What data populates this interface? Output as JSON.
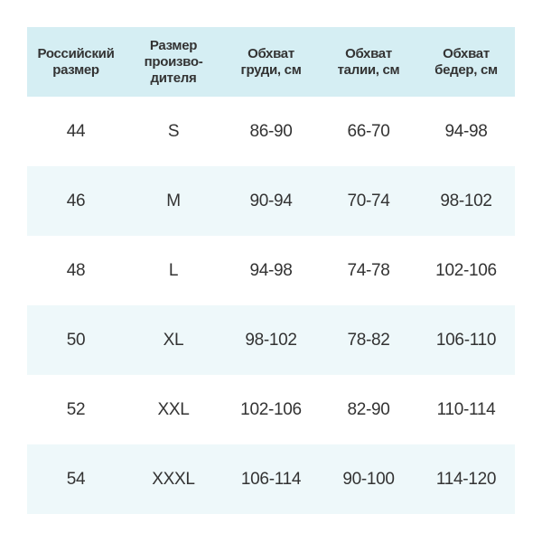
{
  "table": {
    "header": [
      [
        "Российский",
        "размер"
      ],
      [
        "Размер",
        "произво-",
        "дителя"
      ],
      [
        "Обхват",
        "груди, см"
      ],
      [
        "Обхват",
        "талии, см"
      ],
      [
        "Обхват",
        "бедер, см"
      ]
    ],
    "rows": [
      [
        "44",
        "S",
        "86-90",
        "66-70",
        "94-98"
      ],
      [
        "46",
        "M",
        "90-94",
        "70-74",
        "98-102"
      ],
      [
        "48",
        "L",
        "94-98",
        "74-78",
        "102-106"
      ],
      [
        "50",
        "XL",
        "98-102",
        "78-82",
        "106-110"
      ],
      [
        "52",
        "XXL",
        "102-106",
        "82-90",
        "110-114"
      ],
      [
        "54",
        "XXXL",
        "106-114",
        "90-100",
        "114-120"
      ]
    ]
  }
}
